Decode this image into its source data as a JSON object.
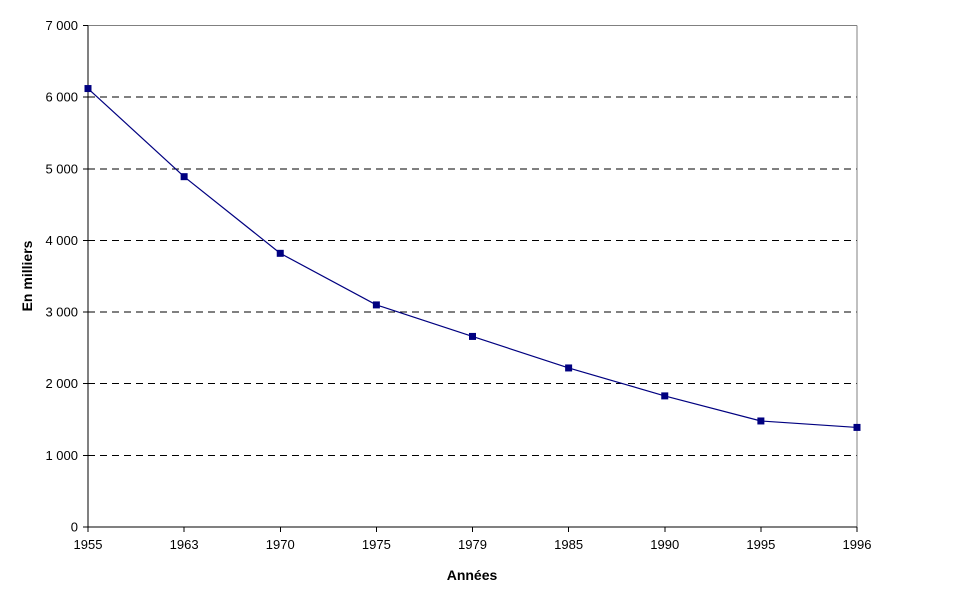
{
  "chart_data": {
    "type": "line",
    "title": "",
    "xlabel": "Années",
    "ylabel": "En milliers",
    "categories": [
      "1955",
      "1963",
      "1970",
      "1975",
      "1979",
      "1985",
      "1990",
      "1995",
      "1996"
    ],
    "series": [
      {
        "name": "",
        "values": [
          6120,
          4890,
          3820,
          3100,
          2660,
          2220,
          1830,
          1480,
          1390
        ]
      }
    ],
    "ylim": [
      0,
      7000
    ],
    "ytick_step": 1000,
    "ytick_labels": [
      "0",
      "1 000",
      "2 000",
      "3 000",
      "4 000",
      "5 000",
      "6 000",
      "7 000"
    ],
    "grid": "horizontal-dashed",
    "legend_position": "none",
    "marker": "square",
    "marker_size": 7,
    "colors": {
      "series": "#000080",
      "gridline": "#000000",
      "axis": "#000000",
      "plot_border": "#808080",
      "text": "#000000",
      "background": "#ffffff"
    }
  }
}
